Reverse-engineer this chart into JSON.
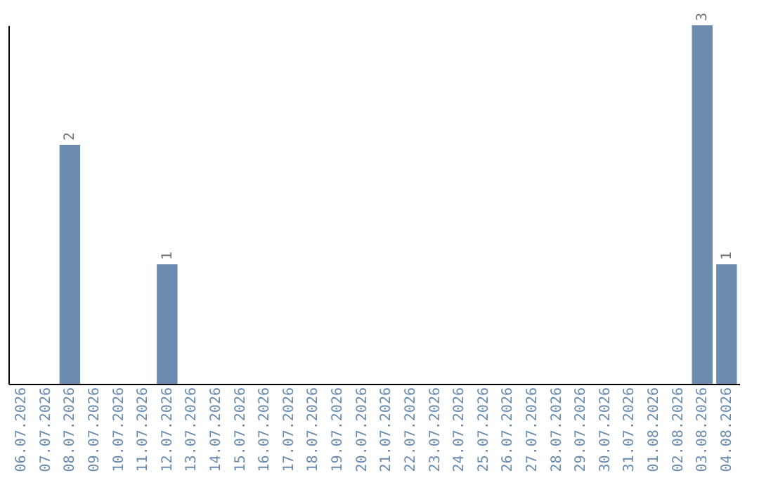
{
  "chart_data": {
    "type": "bar",
    "categories": [
      "06.07.2026",
      "07.07.2026",
      "08.07.2026",
      "09.07.2026",
      "10.07.2026",
      "11.07.2026",
      "12.07.2026",
      "13.07.2026",
      "14.07.2026",
      "15.07.2026",
      "16.07.2026",
      "17.07.2026",
      "18.07.2026",
      "19.07.2026",
      "20.07.2026",
      "21.07.2026",
      "22.07.2026",
      "23.07.2026",
      "24.07.2026",
      "25.07.2026",
      "26.07.2026",
      "27.07.2026",
      "28.07.2026",
      "29.07.2026",
      "30.07.2026",
      "31.07.2026",
      "01.08.2026",
      "02.08.2026",
      "03.08.2026",
      "04.08.2026"
    ],
    "values": [
      0,
      0,
      2,
      0,
      0,
      0,
      1,
      0,
      0,
      0,
      0,
      0,
      0,
      0,
      0,
      0,
      0,
      0,
      0,
      0,
      0,
      0,
      0,
      0,
      0,
      0,
      0,
      0,
      3,
      1
    ],
    "value_labels": [
      null,
      null,
      "2",
      null,
      null,
      null,
      "1",
      null,
      null,
      null,
      null,
      null,
      null,
      null,
      null,
      null,
      null,
      null,
      null,
      null,
      null,
      null,
      null,
      null,
      null,
      null,
      null,
      null,
      "3",
      "1"
    ],
    "color": "#6b8cae",
    "tick_labels": "x",
    "grid": false
  }
}
